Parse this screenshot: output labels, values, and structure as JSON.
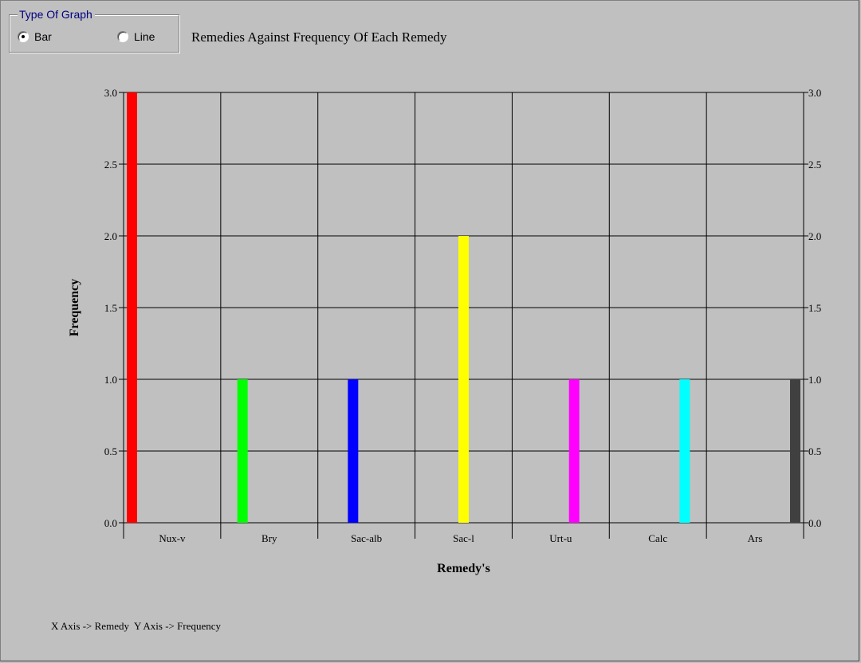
{
  "graph_type": {
    "legend": "Type Of Graph",
    "options": [
      {
        "label": "Bar",
        "selected": true
      },
      {
        "label": "Line",
        "selected": false
      }
    ]
  },
  "chart_data": {
    "type": "bar",
    "title": "Remedies Against Frequency Of Each Remedy",
    "xlabel": "Remedy's",
    "ylabel": "Frequency",
    "categories": [
      "Nux-v",
      "Bry",
      "Sac-alb",
      "Sac-l",
      "Urt-u",
      "Calc",
      "Ars"
    ],
    "values": [
      3,
      1,
      1,
      2,
      1,
      1,
      1
    ],
    "colors": [
      "#ff0000",
      "#00ff00",
      "#0000ff",
      "#ffff00",
      "#ff00ff",
      "#00ffff",
      "#404040"
    ],
    "ylim": [
      0,
      3.0
    ],
    "yticks": [
      "0.0",
      "0.5",
      "1.0",
      "1.5",
      "2.0",
      "2.5",
      "3.0"
    ],
    "grid": true,
    "right_axis_ticks": true
  },
  "footer_note": "X Axis -> Remedy  Y Axis -> Frequency"
}
